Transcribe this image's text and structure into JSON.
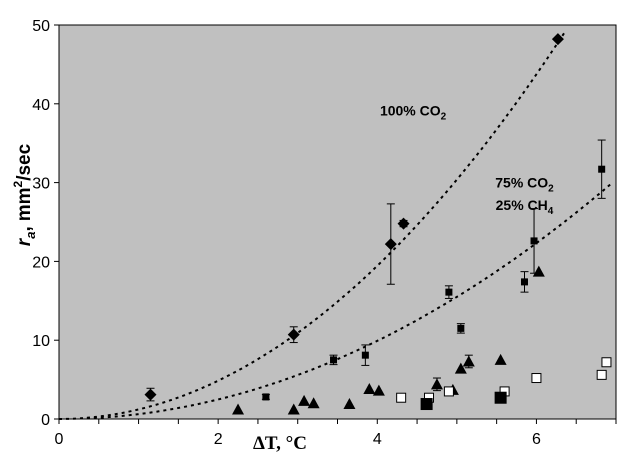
{
  "chart_data": {
    "type": "scatter",
    "title": "",
    "xlabel": "ΔT, °C",
    "ylabel_parts": {
      "symbol": "r",
      "subscript": "a",
      "comma": ",",
      "unit_base": "mm",
      "unit_sup": "2",
      "unit_tail": "/sec"
    },
    "xlim": [
      0,
      7
    ],
    "ylim": [
      0,
      50
    ],
    "xticks": [
      0,
      2,
      4,
      6
    ],
    "yticks": [
      0,
      10,
      20,
      30,
      40,
      50
    ],
    "x_minor_step": 0.5,
    "grid": false,
    "plot_background": "#c0c0c0",
    "annotations": [
      {
        "id": "co2-100",
        "base": "100% CO",
        "sub": "2",
        "x": 4.45,
        "y": 38.5
      },
      {
        "id": "co2-75",
        "base": "75% CO",
        "sub": "2",
        "x": 5.85,
        "y": 29.4
      },
      {
        "id": "ch4-25",
        "base": "25% CH",
        "sub": "4",
        "x": 5.85,
        "y": 26.5
      }
    ],
    "series": [
      {
        "marker": "diamond",
        "color": "#000000",
        "points": [
          {
            "x": 1.15,
            "y": 3.1,
            "err": 0.8
          },
          {
            "x": 2.95,
            "y": 10.7,
            "err": 1.0
          },
          {
            "x": 4.17,
            "y": 22.2,
            "err": 5.1
          },
          {
            "x": 4.33,
            "y": 24.8,
            "err": 0.4
          },
          {
            "x": 6.27,
            "y": 48.2,
            "err": 0
          }
        ]
      },
      {
        "marker": "square",
        "color": "#000000",
        "points": [
          {
            "x": 2.6,
            "y": 2.8,
            "err": 0.3
          },
          {
            "x": 3.45,
            "y": 7.5,
            "err": 0.6
          },
          {
            "x": 3.85,
            "y": 8.1,
            "err": 1.3
          },
          {
            "x": 4.9,
            "y": 16.1,
            "err": 0.8
          },
          {
            "x": 5.05,
            "y": 11.5,
            "err": 0.6
          },
          {
            "x": 5.85,
            "y": 17.4,
            "err": 1.3
          },
          {
            "x": 5.97,
            "y": 22.6,
            "err": 4.1
          },
          {
            "x": 6.82,
            "y": 31.7,
            "err": 3.7
          }
        ]
      },
      {
        "marker": "triangle",
        "color": "#000000",
        "points": [
          {
            "x": 2.25,
            "y": 1.2,
            "err": 0
          },
          {
            "x": 2.95,
            "y": 1.2,
            "err": 0
          },
          {
            "x": 3.08,
            "y": 2.3,
            "err": 0
          },
          {
            "x": 3.2,
            "y": 2.0,
            "err": 0
          },
          {
            "x": 3.65,
            "y": 1.9,
            "err": 0
          },
          {
            "x": 3.9,
            "y": 3.8,
            "err": 0
          },
          {
            "x": 4.02,
            "y": 3.6,
            "err": 0
          },
          {
            "x": 4.75,
            "y": 4.4,
            "err": 0.8
          },
          {
            "x": 4.95,
            "y": 3.7,
            "err": 0
          },
          {
            "x": 5.05,
            "y": 6.4,
            "err": 0
          },
          {
            "x": 5.15,
            "y": 7.3,
            "err": 0.8
          },
          {
            "x": 5.55,
            "y": 7.5,
            "err": 0
          },
          {
            "x": 6.03,
            "y": 18.7,
            "err": 0
          }
        ]
      },
      {
        "marker": "open-square",
        "color": "#ffffff",
        "points": [
          {
            "x": 4.3,
            "y": 2.7
          },
          {
            "x": 4.65,
            "y": 2.7
          },
          {
            "x": 4.9,
            "y": 3.5
          },
          {
            "x": 5.6,
            "y": 3.5
          },
          {
            "x": 6.0,
            "y": 5.2
          },
          {
            "x": 6.82,
            "y": 5.6
          },
          {
            "x": 6.88,
            "y": 7.2
          }
        ]
      },
      {
        "marker": "big-square",
        "color": "#000000",
        "points": [
          {
            "x": 4.62,
            "y": 1.9
          },
          {
            "x": 5.55,
            "y": 2.7
          }
        ]
      }
    ],
    "trendlines": [
      {
        "style": "dotted",
        "coeffs": [
          0.0,
          0.0,
          1.215
        ],
        "x_range": [
          0,
          6.35
        ]
      },
      {
        "style": "dotted",
        "coeffs": [
          0.0,
          0.0,
          0.62
        ],
        "x_range": [
          0.35,
          6.95
        ]
      }
    ]
  }
}
